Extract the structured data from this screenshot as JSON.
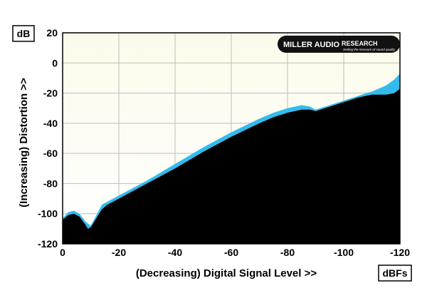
{
  "chart_data": {
    "type": "area",
    "xlabel": "(Decreasing) Digital Signal Level >>",
    "ylabel": "(Increasing) Distortion >>",
    "x_unit": "dBFs",
    "y_unit": "dB",
    "xlim": [
      0,
      -120
    ],
    "ylim": [
      -120,
      20
    ],
    "x_ticks": [
      {
        "value": 0,
        "label": "0"
      },
      {
        "value": -20,
        "label": "-20"
      },
      {
        "value": -40,
        "label": "-40"
      },
      {
        "value": -60,
        "label": "-60"
      },
      {
        "value": -80,
        "label": "-80"
      },
      {
        "value": -100,
        "label": "-100"
      },
      {
        "value": -120,
        "label": "-120"
      }
    ],
    "y_ticks": [
      {
        "value": 20,
        "label": "20"
      },
      {
        "value": 0,
        "label": "0"
      },
      {
        "value": -20,
        "label": "-20"
      },
      {
        "value": -40,
        "label": "-40"
      },
      {
        "value": -60,
        "label": "-60"
      },
      {
        "value": -80,
        "label": "-80"
      },
      {
        "value": -100,
        "label": "-100"
      },
      {
        "value": -120,
        "label": "-120"
      }
    ],
    "grid": true,
    "series": [
      {
        "color": "#33bbee",
        "x": [
          0,
          -2,
          -4,
          -6,
          -8,
          -10,
          -12,
          -14,
          -16,
          -20,
          -30,
          -40,
          -50,
          -60,
          -70,
          -75,
          -80,
          -85,
          -88,
          -90,
          -95,
          -100,
          -105,
          -108,
          -110,
          -115,
          -118,
          -120
        ],
        "y": [
          -103,
          -99,
          -98,
          -100,
          -105,
          -108,
          -101,
          -94,
          -92,
          -88,
          -78,
          -67,
          -56,
          -46,
          -37,
          -33,
          -30,
          -28,
          -29,
          -31,
          -28,
          -25,
          -22,
          -20,
          -19,
          -15,
          -11,
          -7
        ]
      },
      {
        "color": "#000000",
        "x": [
          0,
          -2,
          -4,
          -6,
          -8,
          -9,
          -10,
          -12,
          -14,
          -16,
          -20,
          -30,
          -40,
          -50,
          -60,
          -70,
          -75,
          -80,
          -85,
          -88,
          -90,
          -95,
          -100,
          -105,
          -110,
          -115,
          -118,
          -120
        ],
        "y": [
          -104,
          -101,
          -100,
          -102,
          -107,
          -110,
          -109,
          -103,
          -97,
          -94,
          -90,
          -80,
          -70,
          -59,
          -49,
          -40,
          -36,
          -33,
          -31,
          -31,
          -32,
          -29,
          -26,
          -23,
          -21,
          -21,
          -20,
          -17
        ]
      }
    ]
  },
  "logo": {
    "brand_left": "MILLER AUDIO",
    "brand_right": "RESEARCH",
    "tagline": "Setting the measure of sound quality",
    "bg_color": "#111111",
    "text_color": "#ffffff"
  },
  "colors": {
    "plot_bg_top": "#fbfbea",
    "plot_bg_bottom": "#ffffff",
    "grid": "#bdbdbd"
  }
}
